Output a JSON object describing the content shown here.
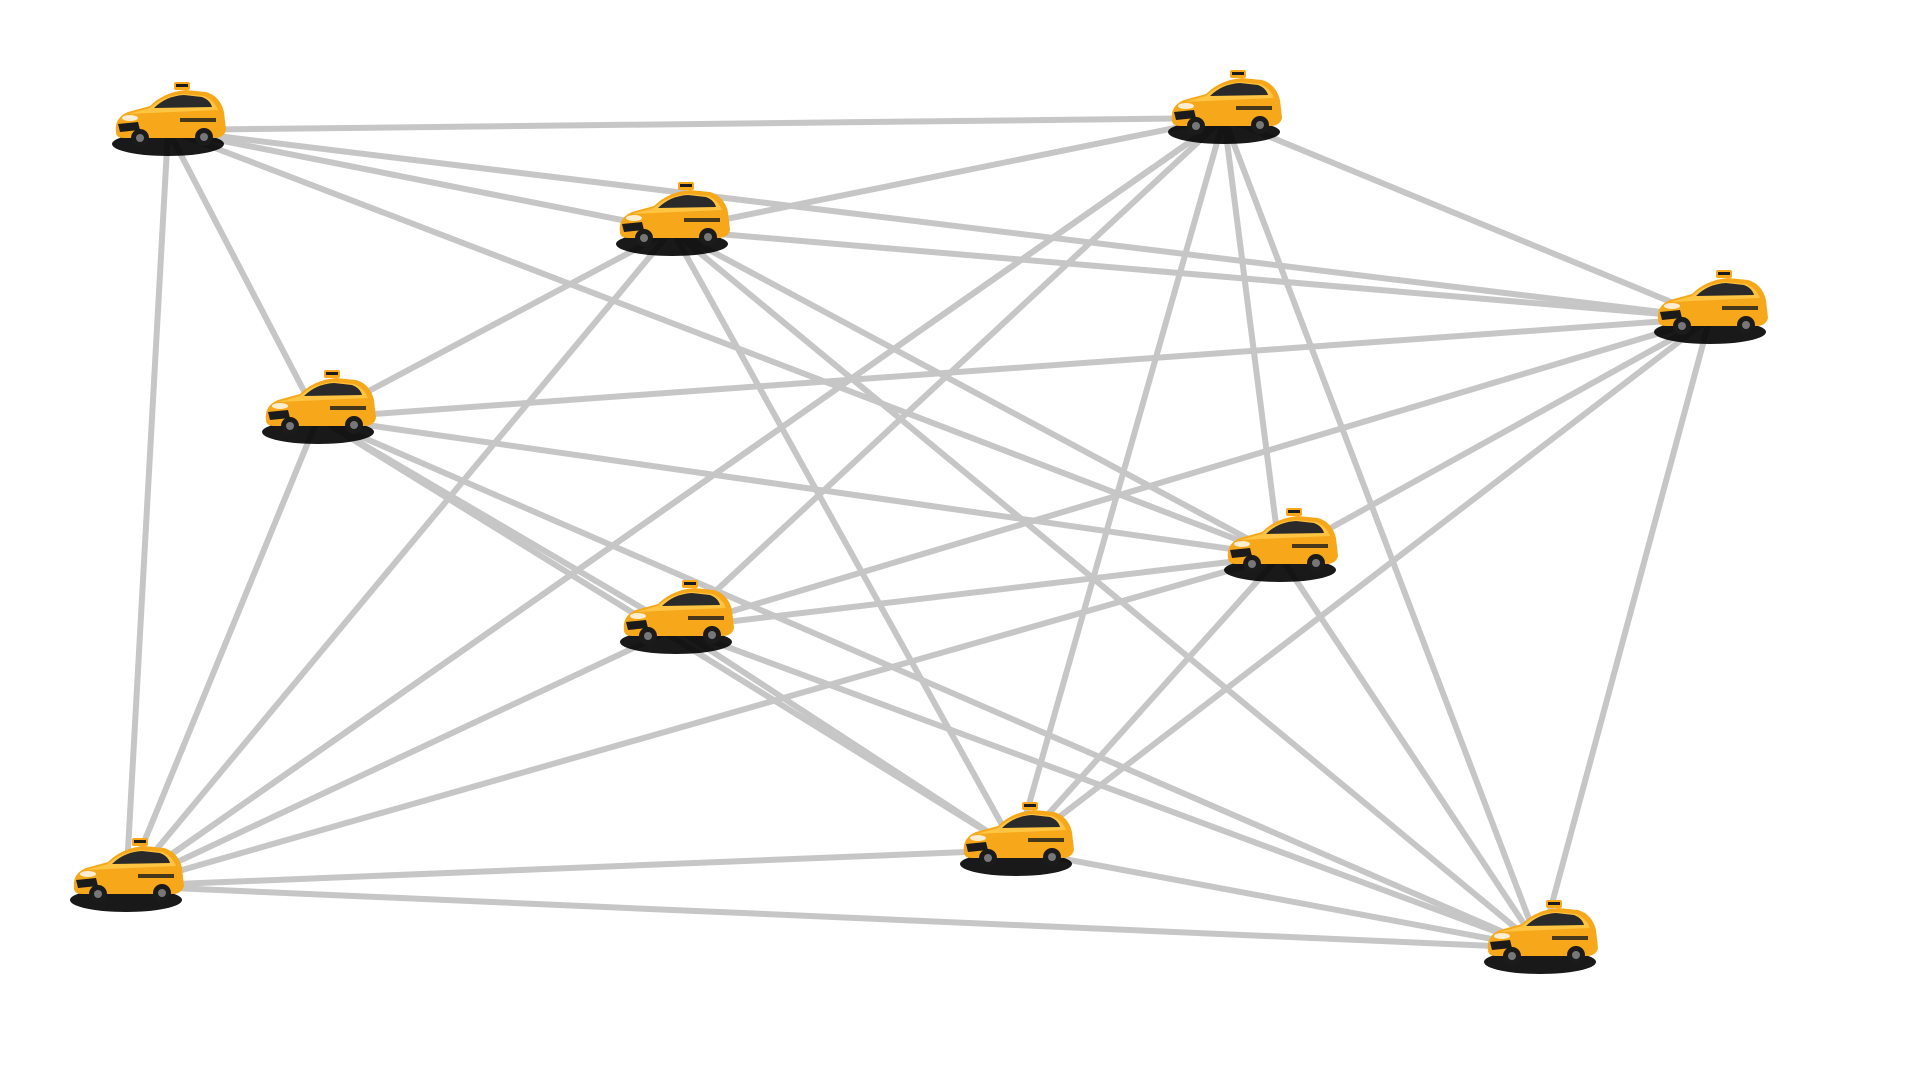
{
  "diagram": {
    "type": "network",
    "node_kind": "taxi-car",
    "colors": {
      "edge": "#c6c6c6",
      "car_body": "#f6a81a",
      "car_body_light": "#ffc94a",
      "car_dark": "#1b1b1b",
      "shadow": "#000000",
      "glass": "#2a2a2a"
    },
    "nodes": [
      {
        "id": "n1"
      },
      {
        "id": "n2"
      },
      {
        "id": "n3"
      },
      {
        "id": "n4"
      },
      {
        "id": "n5"
      },
      {
        "id": "n6"
      },
      {
        "id": "n7"
      },
      {
        "id": "n8"
      },
      {
        "id": "n9"
      },
      {
        "id": "n10"
      }
    ],
    "edges": [
      [
        "n1",
        "n2"
      ],
      [
        "n1",
        "n3"
      ],
      [
        "n1",
        "n4"
      ],
      [
        "n1",
        "n8"
      ],
      [
        "n1",
        "n5"
      ],
      [
        "n2",
        "n3"
      ],
      [
        "n2",
        "n4"
      ],
      [
        "n2",
        "n5"
      ],
      [
        "n2",
        "n6"
      ],
      [
        "n2",
        "n8"
      ],
      [
        "n2",
        "n9"
      ],
      [
        "n2",
        "n10"
      ],
      [
        "n3",
        "n6"
      ],
      [
        "n3",
        "n7"
      ],
      [
        "n3",
        "n8"
      ],
      [
        "n3",
        "n9"
      ],
      [
        "n3",
        "n10"
      ],
      [
        "n3",
        "n4"
      ],
      [
        "n4",
        "n5"
      ],
      [
        "n4",
        "n6"
      ],
      [
        "n4",
        "n7"
      ],
      [
        "n4",
        "n9"
      ],
      [
        "n4",
        "n10"
      ],
      [
        "n5",
        "n6"
      ],
      [
        "n5",
        "n7"
      ],
      [
        "n5",
        "n8"
      ],
      [
        "n5",
        "n9"
      ],
      [
        "n5",
        "n10"
      ],
      [
        "n6",
        "n7"
      ],
      [
        "n6",
        "n8"
      ],
      [
        "n6",
        "n9"
      ],
      [
        "n6",
        "n10"
      ],
      [
        "n7",
        "n8"
      ],
      [
        "n7",
        "n9"
      ],
      [
        "n7",
        "n10"
      ],
      [
        "n8",
        "n9"
      ],
      [
        "n8",
        "n10"
      ],
      [
        "n9",
        "n10"
      ],
      [
        "n1",
        "n6"
      ],
      [
        "n8",
        "n3"
      ]
    ]
  }
}
